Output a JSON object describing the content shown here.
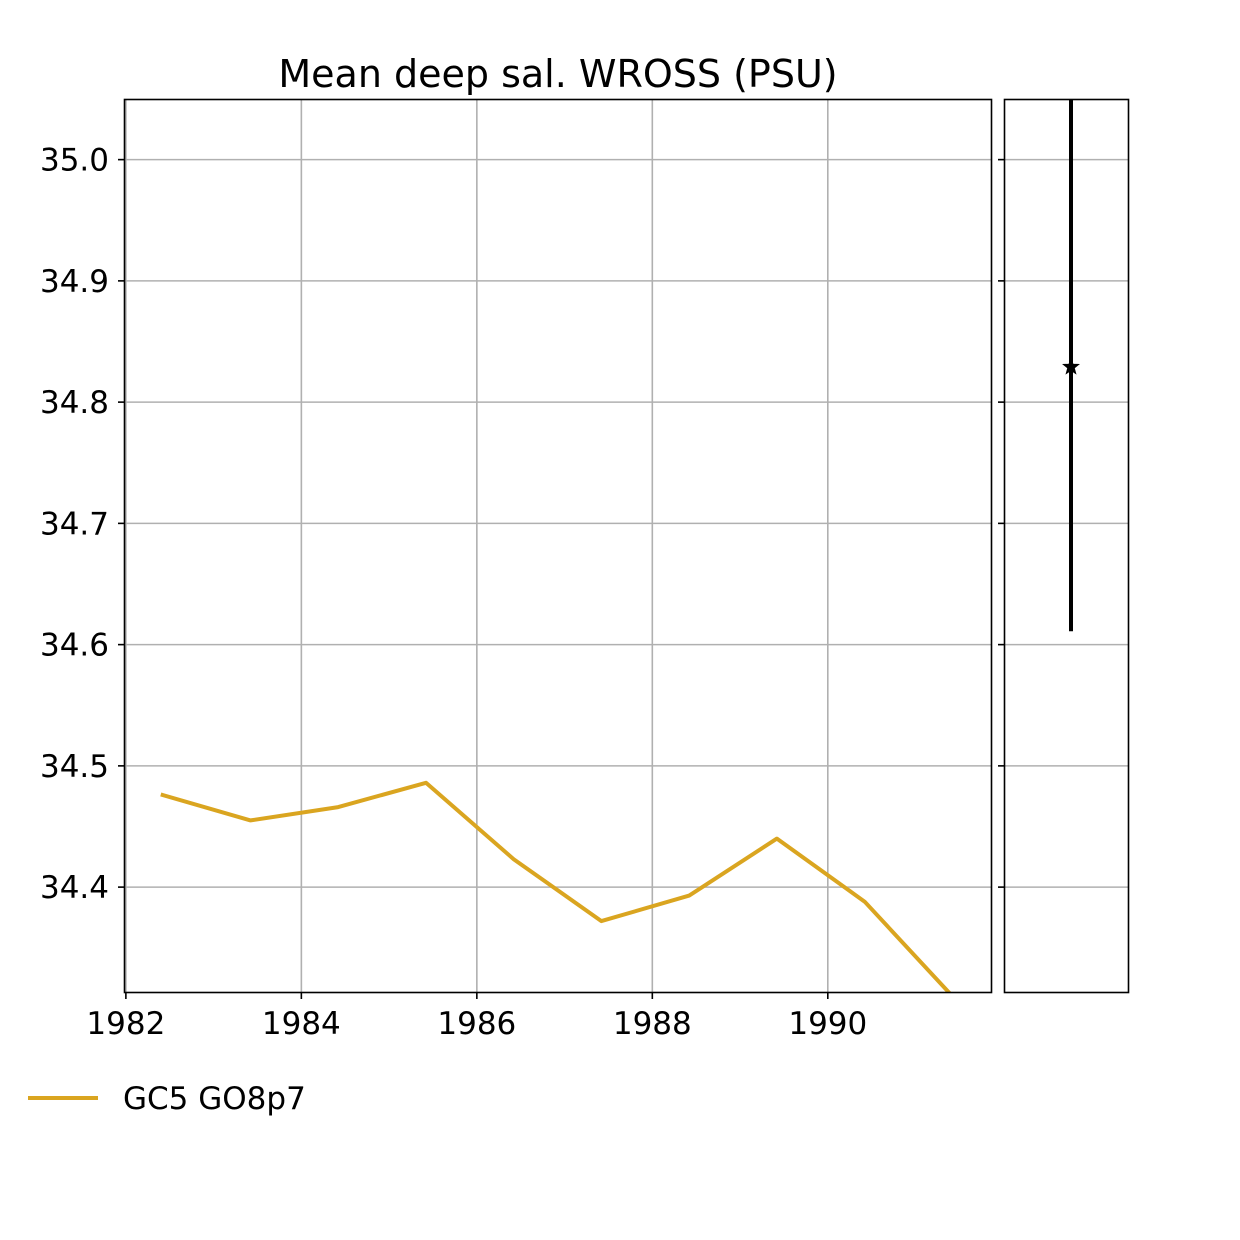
{
  "chart_data": {
    "type": "line",
    "title": "Mean deep sal. WROSS (PSU)",
    "xlabel": "",
    "ylabel": "",
    "xlim": [
      1981.99,
      1991.86
    ],
    "ylim": [
      34.3135,
      35.05
    ],
    "x_ticks": [
      1982,
      1984,
      1986,
      1988,
      1990
    ],
    "y_ticks": [
      34.4,
      34.5,
      34.6,
      34.7,
      34.8,
      34.9,
      35.0
    ],
    "grid": true,
    "legend_position": "bottom-left, below plot",
    "series": [
      {
        "name": "GC5 GO8p7",
        "color": "#DAA520",
        "x": [
          1982.42,
          1983.42,
          1984.42,
          1985.42,
          1986.42,
          1987.42,
          1988.42,
          1989.42,
          1990.42,
          1991.42
        ],
        "y": [
          34.476,
          34.455,
          34.466,
          34.486,
          34.423,
          34.372,
          34.393,
          34.44,
          34.388,
          34.31
        ]
      }
    ],
    "side_panel": {
      "type": "errorbar",
      "color": "#000000",
      "marker": "star",
      "center": 34.829,
      "low": 34.611,
      "high": 35.05
    }
  }
}
